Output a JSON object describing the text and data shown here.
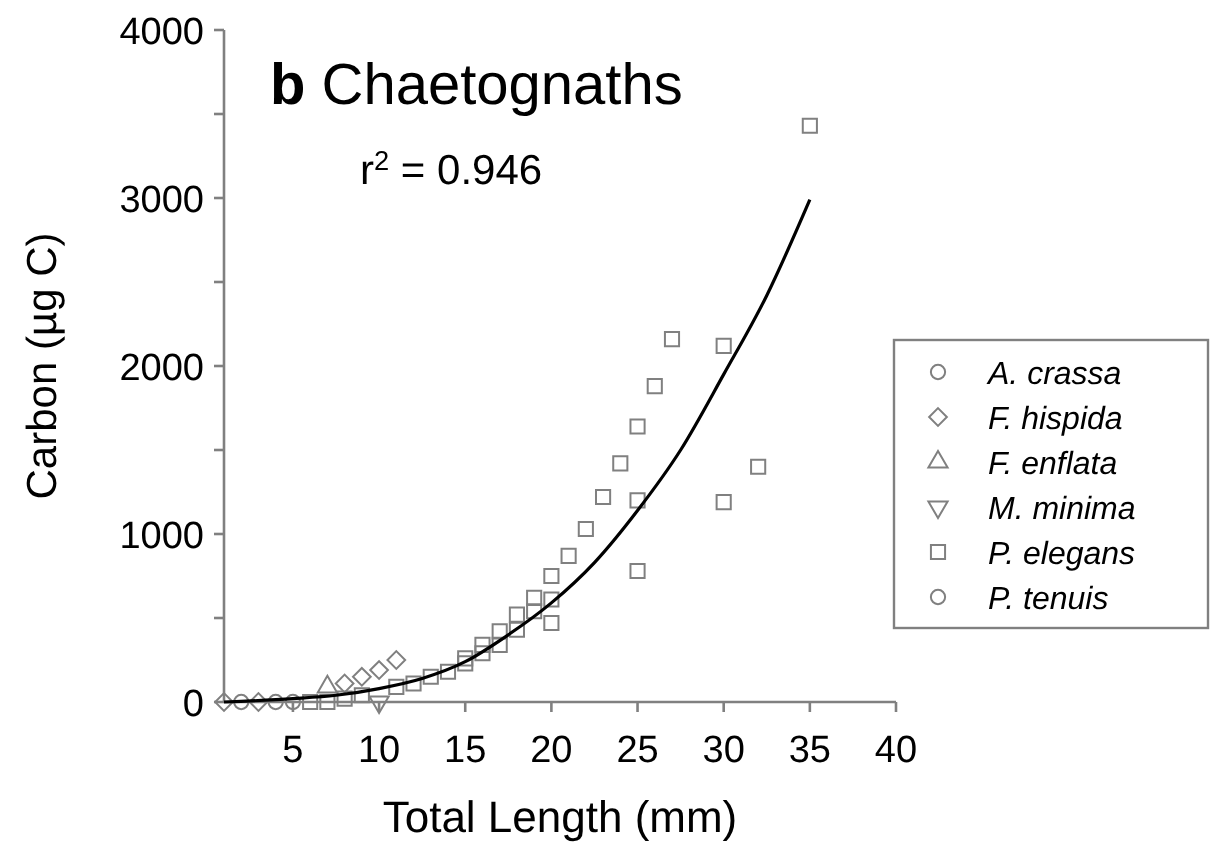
{
  "chart_data": {
    "type": "scatter",
    "title": "b  Chaetognaths",
    "xlabel": "Total Length (mm)",
    "ylabel": "Carbon (µg C)",
    "annotations": [
      "r$^{2}$ = 0.946"
    ],
    "xlim": [
      1,
      40
    ],
    "xticks": [
      5,
      10,
      15,
      20,
      25,
      30,
      35,
      40
    ],
    "ylim": [
      0,
      4000
    ],
    "yticks": [
      0,
      {
        "value": 500,
        "label": null
      },
      1000,
      {
        "value": 1500,
        "label": null
      },
      2000,
      {
        "value": 2500,
        "label": null
      },
      3000,
      {
        "value": 3500,
        "label": null
      },
      4000
    ],
    "grid": false,
    "legend": "right",
    "series": [
      {
        "name": "A. crassa",
        "color": "#808080",
        "marker": "circle",
        "x": [
          2,
          4
        ],
        "values": [
          0,
          0
        ]
      },
      {
        "name": "F. hispida",
        "color": "#808080",
        "marker": "diamond",
        "x": [
          1,
          3,
          8,
          9,
          10,
          11
        ],
        "values": [
          0,
          0,
          110,
          150,
          190,
          250
        ]
      },
      {
        "name": "F. enflata",
        "color": "#808080",
        "marker": "triangle",
        "x": [
          7
        ],
        "values": [
          90
        ]
      },
      {
        "name": "M. minima",
        "color": "#808080",
        "marker": "triangle-down",
        "x": [
          10
        ],
        "values": [
          0
        ]
      },
      {
        "name": "P. elegans",
        "color": "#808080",
        "marker": "square",
        "x": [
          15,
          15,
          16,
          16,
          17,
          17,
          18,
          18,
          19,
          19,
          20,
          20,
          20,
          21,
          22,
          23,
          24,
          25,
          25,
          25,
          26,
          27,
          30,
          30,
          32,
          35,
          6,
          7,
          8,
          9,
          11,
          12,
          13,
          14
        ],
        "values": [
          230,
          260,
          290,
          340,
          340,
          420,
          430,
          520,
          540,
          620,
          470,
          610,
          750,
          870,
          1030,
          1220,
          1420,
          780,
          1200,
          1640,
          1880,
          2160,
          1190,
          2120,
          1400,
          3430,
          0,
          0,
          20,
          40,
          90,
          110,
          150,
          180
        ]
      },
      {
        "name": "P. tenuis",
        "color": "#808080",
        "marker": "circle",
        "x": [
          5
        ],
        "values": [
          0
        ]
      },
      {
        "type": "line",
        "color": "#000000",
        "line_style": "solid",
        "marker": "none",
        "x": [
          1,
          5,
          7.5,
          10,
          12.5,
          15,
          17.5,
          20,
          22.5,
          25,
          27.5,
          30,
          32.5,
          35
        ],
        "values": [
          0,
          20,
          40,
          80,
          140,
          240,
          400,
          590,
          830,
          1140,
          1500,
          1950,
          2420,
          2990
        ]
      }
    ]
  }
}
